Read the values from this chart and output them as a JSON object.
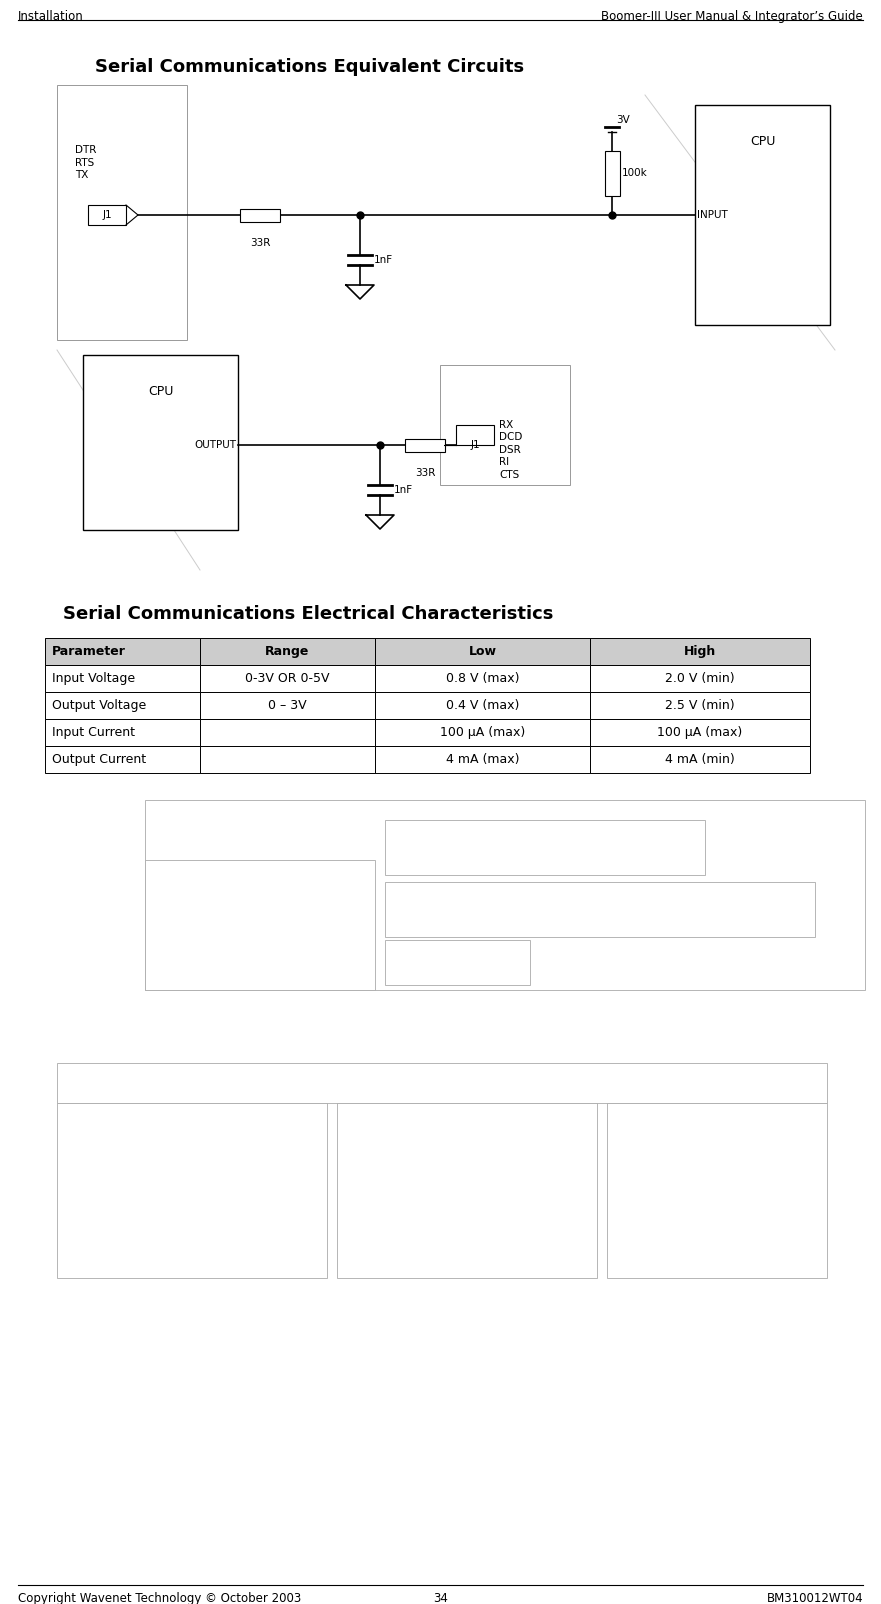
{
  "header_left": "Installation",
  "header_right": "Boomer-III User Manual & Integrator’s Guide",
  "footer_left": "Copyright Wavenet Technology © October 2003",
  "footer_center": "34",
  "footer_right": "BM310012WT04",
  "section1_title": "Serial Communications Equivalent Circuits",
  "section2_title": "Serial Communications Electrical Characteristics",
  "table_headers": [
    "Parameter",
    "Range",
    "Low",
    "High"
  ],
  "table_rows": [
    [
      "Input Voltage",
      "0-3V OR 0-5V",
      "0.8 V (max)",
      "2.0 V (min)"
    ],
    [
      "Output Voltage",
      "0 – 3V",
      "0.4 V (max)",
      "2.5 V (min)"
    ],
    [
      "Input Current",
      "",
      "100 µA (max)",
      "100 µA (max)"
    ],
    [
      "Output Current",
      "",
      "4 mA (max)",
      "4 mA (min)"
    ]
  ],
  "bg_color": "#ffffff"
}
